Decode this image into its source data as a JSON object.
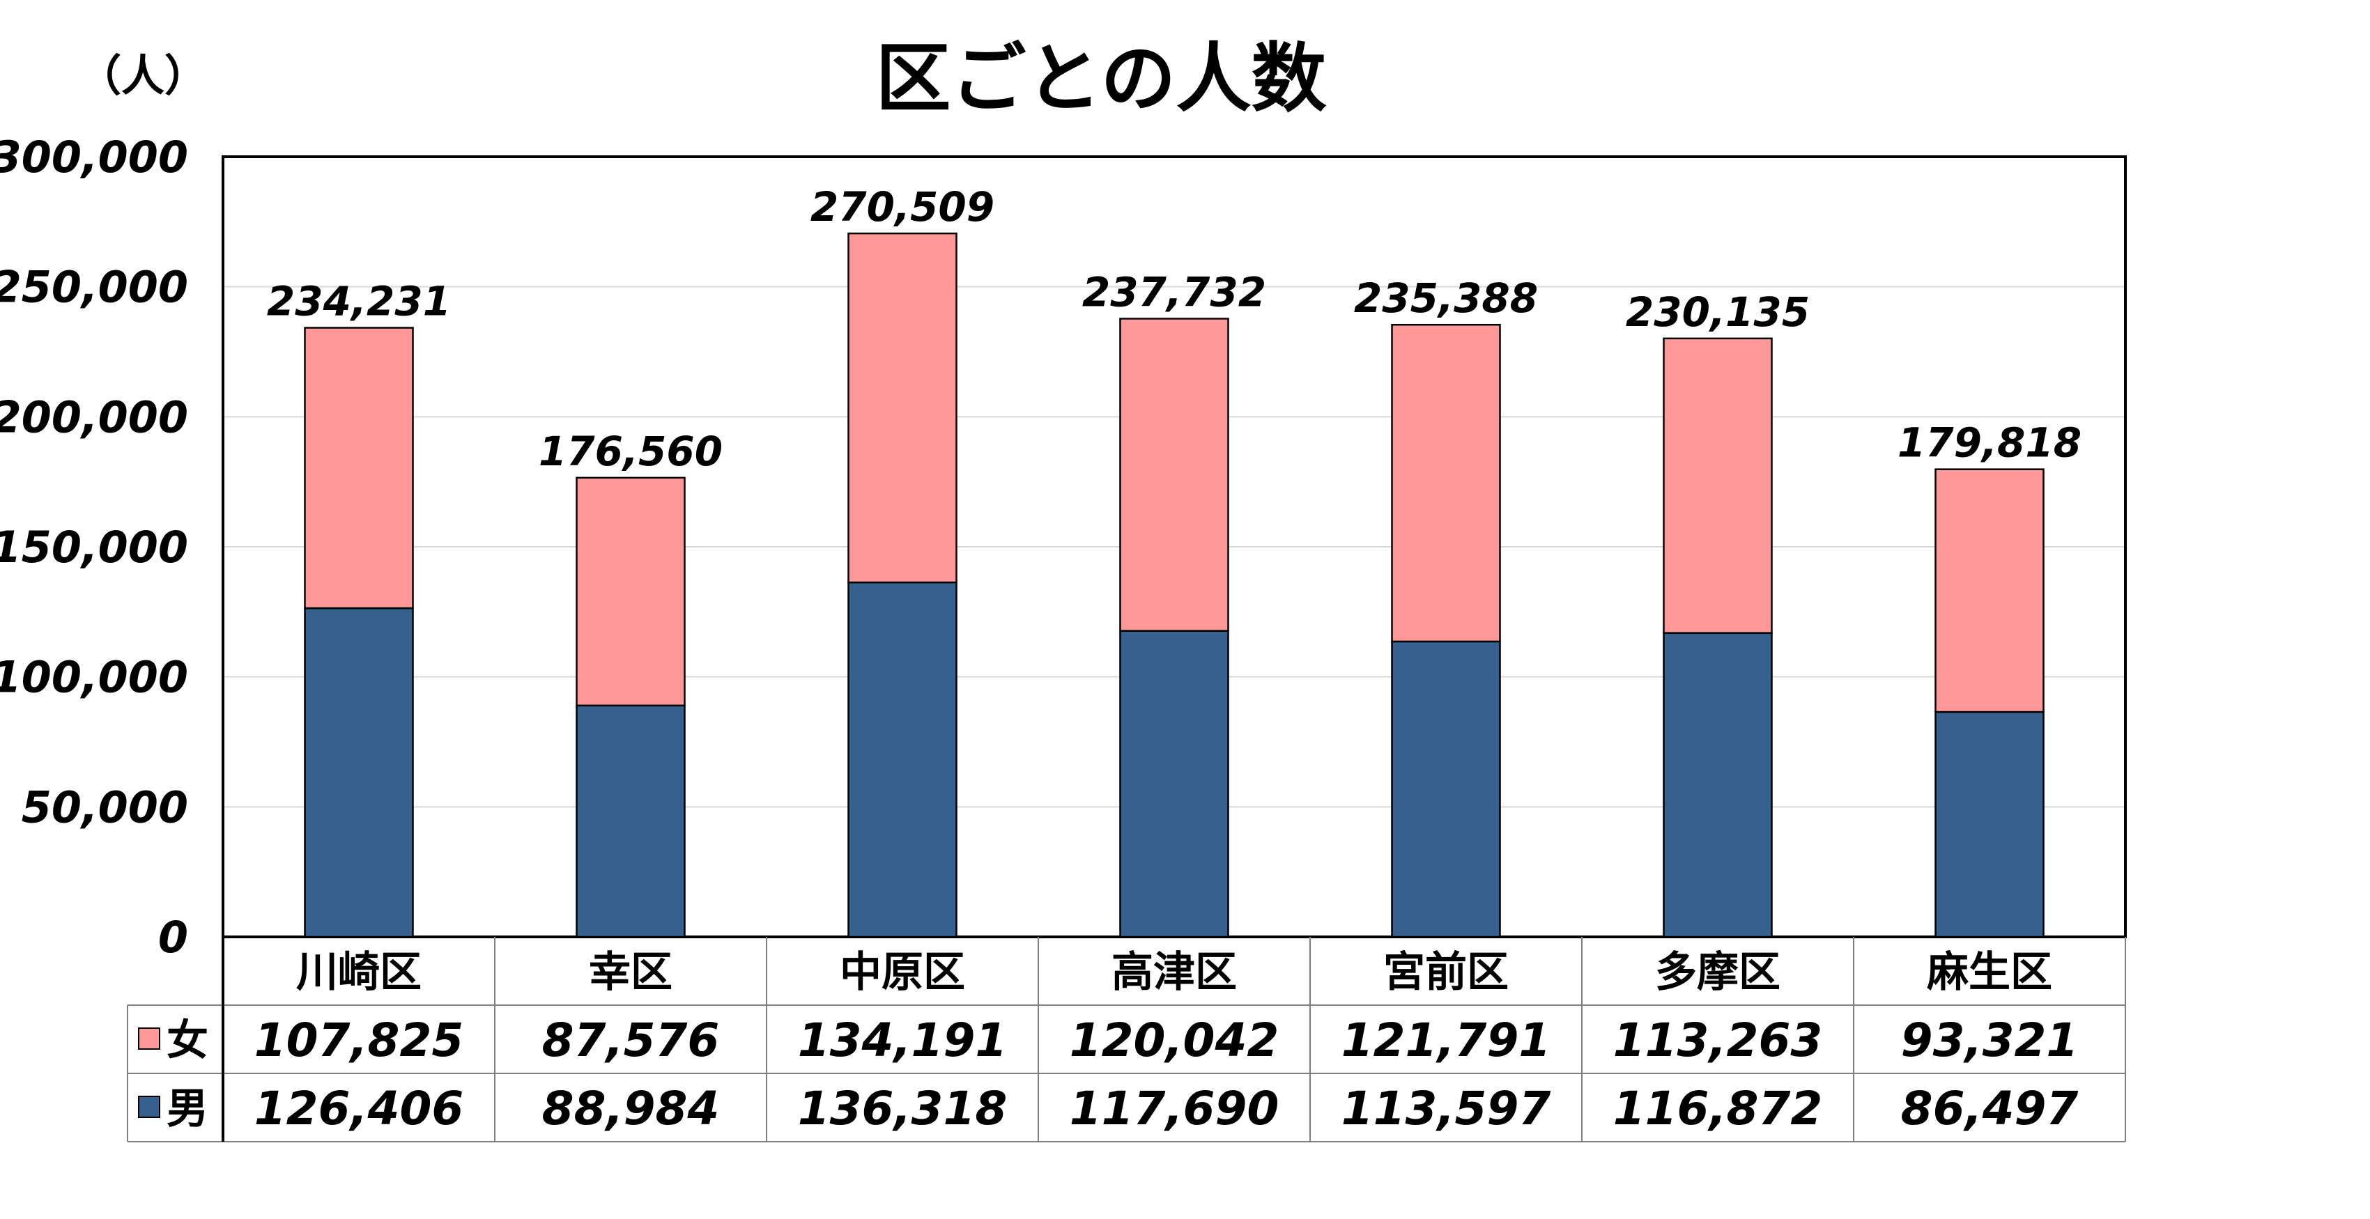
{
  "chart_data": {
    "type": "bar",
    "stacked": true,
    "title": "区ごとの人数",
    "ylabel": "（人）",
    "ylim": [
      0,
      300000
    ],
    "yticks": [
      0,
      50000,
      100000,
      150000,
      200000,
      250000,
      300000
    ],
    "ytick_labels": [
      "0",
      "50,000",
      "100,000",
      "150,000",
      "200,000",
      "250,000",
      "300,000"
    ],
    "grid": true,
    "legend_position": "data-table",
    "categories": [
      "川崎区",
      "幸区",
      "中原区",
      "高津区",
      "宮前区",
      "多摩区",
      "麻生区"
    ],
    "series": [
      {
        "name": "男",
        "color": "#36618f",
        "values": [
          126406,
          88984,
          136318,
          117690,
          113597,
          116872,
          86497
        ],
        "labels": [
          "126,406",
          "88,984",
          "136,318",
          "117,690",
          "113,597",
          "116,872",
          "86,497"
        ]
      },
      {
        "name": "女",
        "color": "#ff9999",
        "values": [
          107825,
          87576,
          134191,
          120042,
          121791,
          113263,
          93321
        ],
        "labels": [
          "107,825",
          "87,576",
          "134,191",
          "120,042",
          "121,791",
          "113,263",
          "93,321"
        ]
      }
    ],
    "totals": [
      234231,
      176560,
      270509,
      237732,
      235388,
      230135,
      179818
    ],
    "total_labels": [
      "234,231",
      "176,560",
      "270,509",
      "237,732",
      "235,388",
      "230,135",
      "179,818"
    ]
  }
}
